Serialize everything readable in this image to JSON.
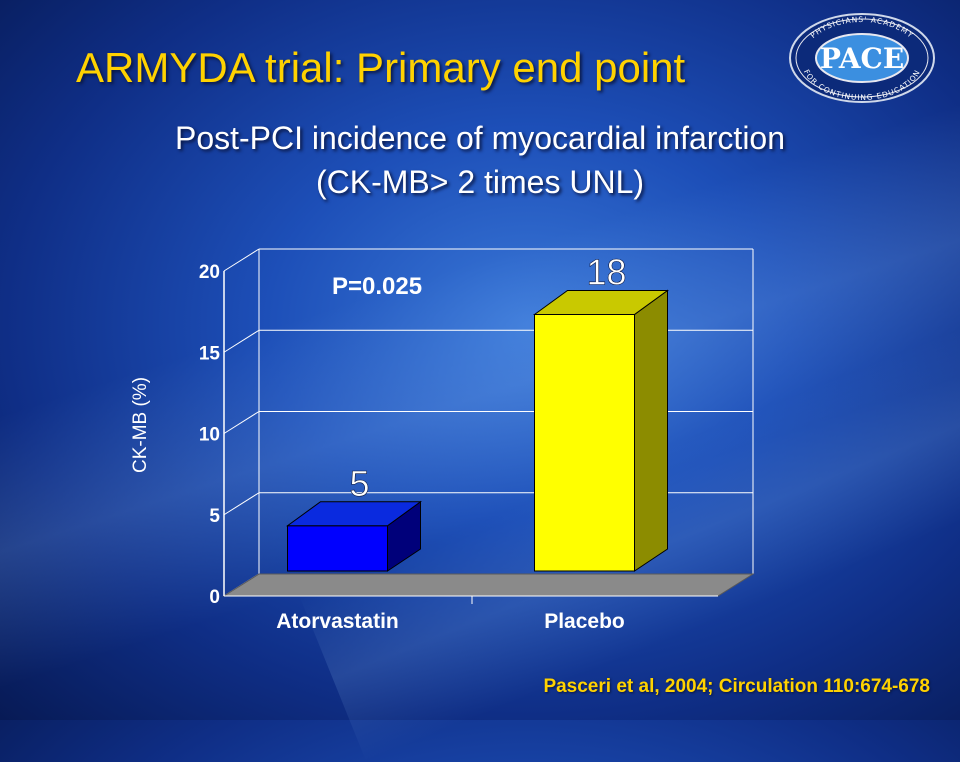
{
  "slide": {
    "title": "ARMYDA trial: Primary end point",
    "subtitle_line1": "Post-PCI incidence of myocardial infarction",
    "subtitle_line2": "(CK-MB> 2 times UNL)",
    "citation": "Pasceri et al, 2004; Circulation 110:674-678",
    "logo": {
      "main_text": "PACE",
      "ring_text_top": "PHYSICIANS' ACADEMY",
      "ring_text_bottom": "FOR CONTINUING EDUCATION"
    }
  },
  "chart_data": {
    "type": "bar",
    "title": "",
    "categories": [
      "Atorvastatin",
      "Placebo"
    ],
    "values": [
      5,
      18
    ],
    "data_labels": [
      "5",
      "18"
    ],
    "ylabel": "CK-MB (%)",
    "xlabel": "",
    "ylim": [
      0,
      20
    ],
    "yticks": [
      0,
      5,
      10,
      15,
      20
    ],
    "annotation": "P=0.025",
    "grid": true,
    "legend": "none",
    "three_d": true,
    "colors": {
      "bars": [
        "#0000ff",
        "#ffff00"
      ],
      "bar_tops": [
        "#0a2adf",
        "#c9c900"
      ],
      "bar_sides": [
        "#00007a",
        "#8c8c00"
      ],
      "floor": "#8a8a8a",
      "grid": "#ffffff",
      "axis_text": "#ffffff",
      "data_label": "#ffffff"
    }
  }
}
